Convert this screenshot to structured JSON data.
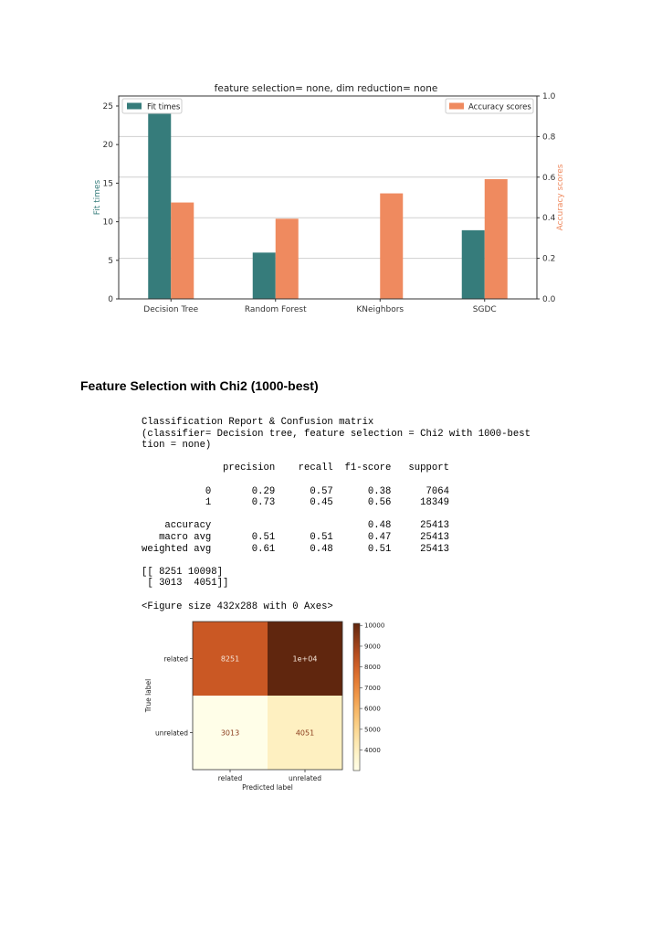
{
  "bar_chart": {
    "chart_data": {
      "type": "bar",
      "title": "feature selection= none, dim reduction= none",
      "categories": [
        "Decision Tree",
        "Random Forest",
        "KNeighbors",
        "SGDC"
      ],
      "series": [
        {
          "name": "Fit times",
          "axis": "left",
          "color": "#367c7b",
          "values": [
            25.1,
            6.0,
            0.0,
            8.9
          ]
        },
        {
          "name": "Accuracy scores",
          "axis": "right",
          "color": "#ef8a5f",
          "values": [
            0.475,
            0.395,
            0.52,
            0.59
          ]
        }
      ],
      "ylabel": "Fit times",
      "ylabel_right": "Accuracy scores",
      "ylim": [
        0,
        26.3
      ],
      "ylim_right": [
        0,
        1.0
      ],
      "yticks": [
        "0",
        "5",
        "10",
        "15",
        "20",
        "25"
      ],
      "yticks_right": [
        "0.0",
        "0.2",
        "0.4",
        "0.6",
        "0.8",
        "1.0"
      ],
      "grid": true,
      "legend_left": "top-left",
      "legend_right": "top-right"
    }
  },
  "section": {
    "heading": "Feature Selection with Chi2 (1000-best)"
  },
  "report": {
    "text": "Classification Report & Confusion matrix\n(classifier= Decision tree, feature selection = Chi2 with 1000-best ,\ntion = none)\n\n              precision    recall  f1-score   support\n\n           0       0.29      0.57      0.38      7064\n           1       0.73      0.45      0.56     18349\n\n    accuracy                           0.48     25413\n   macro avg       0.51      0.51      0.47     25413\nweighted avg       0.61      0.48      0.51     25413\n\n[[ 8251 10098]\n [ 3013  4051]]\n\n<Figure size 432x288 with 0 Axes>"
  },
  "confusion_matrix": {
    "chart_data": {
      "type": "heatmap",
      "row_labels": [
        "related",
        "unrelated"
      ],
      "col_labels": [
        "related",
        "unrelated"
      ],
      "values": [
        [
          8251,
          10098
        ],
        [
          3013,
          4051
        ]
      ],
      "cell_text": [
        [
          "8251",
          "1e+04"
        ],
        [
          "3013",
          "4051"
        ]
      ],
      "xlabel": "Predicted label",
      "ylabel": "True label",
      "colorbar_ticks": [
        "4000",
        "5000",
        "6000",
        "7000",
        "8000",
        "9000",
        "10000"
      ],
      "colorbar_range": [
        3013,
        10098
      ],
      "colormap": "Oranges-like (light yellow to dark brown)"
    }
  }
}
